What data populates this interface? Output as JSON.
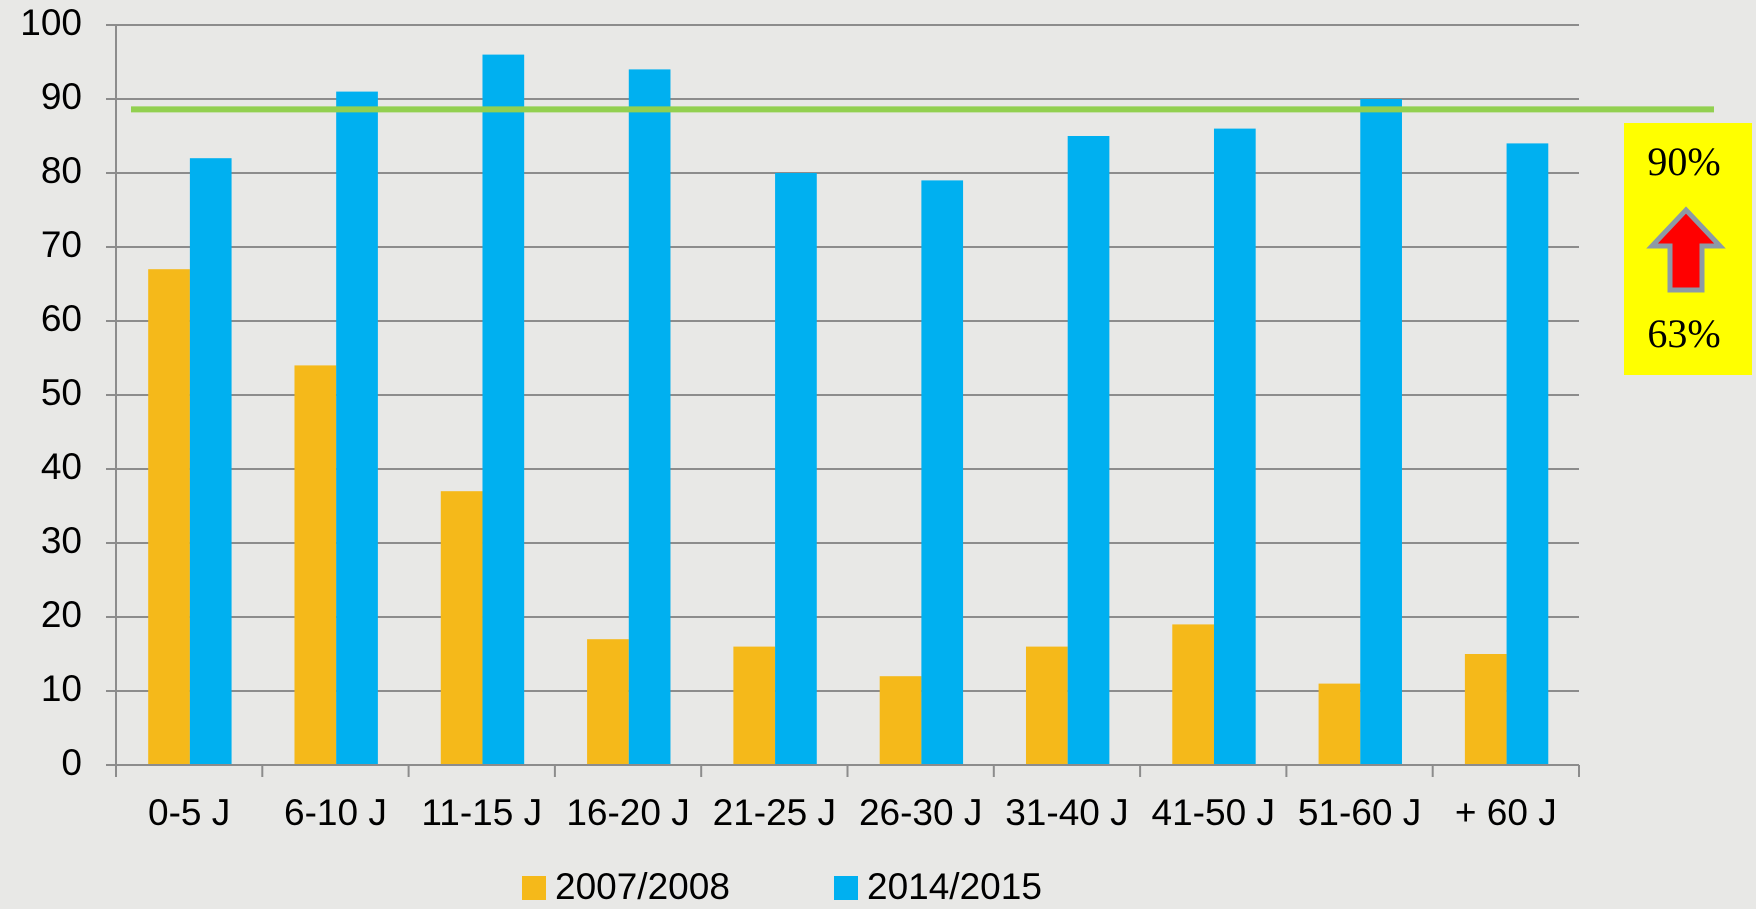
{
  "chart_data": {
    "type": "bar",
    "categories": [
      "0-5 J",
      "6-10 J",
      "11-15 J",
      "16-20 J",
      "21-25 J",
      "26-30 J",
      "31-40 J",
      "41-50 J",
      "51-60 J",
      "+ 60 J"
    ],
    "series": [
      {
        "name": "2007/2008",
        "color": "#f5b91a",
        "values": [
          67,
          54,
          37,
          17,
          16,
          12,
          16,
          19,
          11,
          15
        ]
      },
      {
        "name": "2014/2015",
        "color": "#00b0f0",
        "values": [
          82,
          91,
          96,
          94,
          80,
          79,
          85,
          86,
          90,
          84
        ]
      }
    ],
    "ylim": [
      0,
      100
    ],
    "yticks": [
      0,
      10,
      20,
      30,
      40,
      50,
      60,
      70,
      80,
      90,
      100
    ],
    "grid": true,
    "reference_line": {
      "value": 88.6,
      "color": "#92d050"
    },
    "annotation": {
      "top": "90%",
      "bottom": "63%"
    },
    "legend": "bottom"
  }
}
